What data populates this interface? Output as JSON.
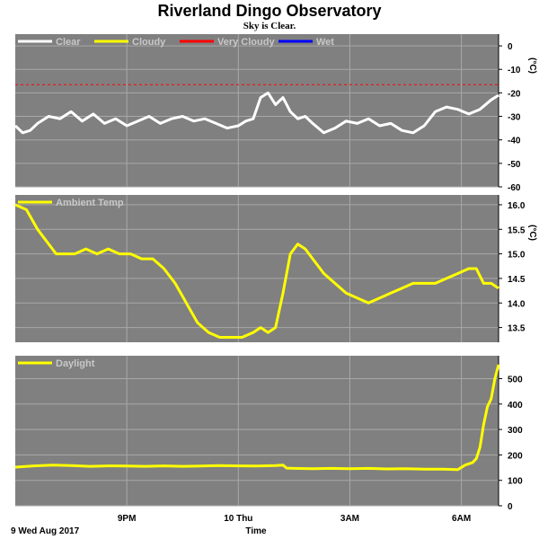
{
  "title": "Riverland Dingo Observatory",
  "subtitle": "Sky is Clear.",
  "date_label": "9 Wed Aug 2017",
  "x_axis_title": "Time",
  "x_ticks": [
    {
      "label": "9PM",
      "hour": 3.0
    },
    {
      "label": "10 Thu",
      "hour": 6.0
    },
    {
      "label": "3AM",
      "hour": 9.0
    },
    {
      "label": "6AM",
      "hour": 12.0
    }
  ],
  "colors": {
    "panel_bg": "#808080",
    "grid": "#a8a8a8",
    "clear": "#ffffff",
    "cloudy": "#ffff00",
    "very_cloudy": "#ff0000",
    "wet": "#0000ff"
  },
  "chart_data": [
    {
      "type": "line",
      "name": "sky",
      "y_unit": "(°C)",
      "ylim": [
        -60,
        5
      ],
      "yticks": [
        0,
        -10,
        -20,
        -30,
        -40,
        -50,
        -60
      ],
      "threshold": -16.5,
      "legend": [
        {
          "label": "Clear",
          "color": "#ffffff"
        },
        {
          "label": "Cloudy",
          "color": "#ffff00"
        },
        {
          "label": "Very Cloudy",
          "color": "#ff0000"
        },
        {
          "label": "Wet",
          "color": "#0000ff"
        }
      ],
      "series": [
        {
          "name": "Clear",
          "color": "#ffffff",
          "x": [
            0,
            0.2,
            0.4,
            0.6,
            0.9,
            1.2,
            1.5,
            1.8,
            2.1,
            2.4,
            2.7,
            3.0,
            3.3,
            3.6,
            3.9,
            4.2,
            4.5,
            4.8,
            5.1,
            5.4,
            5.7,
            6.0,
            6.2,
            6.4,
            6.6,
            6.8,
            7.0,
            7.2,
            7.4,
            7.6,
            7.8,
            8.0,
            8.3,
            8.6,
            8.9,
            9.2,
            9.5,
            9.8,
            10.1,
            10.4,
            10.7,
            11.0,
            11.3,
            11.6,
            11.9,
            12.2,
            12.5,
            12.8,
            13.0
          ],
          "y": [
            -34,
            -37,
            -36,
            -33,
            -30,
            -31,
            -28,
            -32,
            -29,
            -33,
            -31,
            -34,
            -32,
            -30,
            -33,
            -31,
            -30,
            -32,
            -31,
            -33,
            -35,
            -34,
            -32,
            -31,
            -22,
            -20,
            -25,
            -22,
            -28,
            -31,
            -30,
            -33,
            -37,
            -35,
            -32,
            -33,
            -31,
            -34,
            -33,
            -36,
            -37,
            -34,
            -28,
            -26,
            -27,
            -29,
            -27,
            -23,
            -21
          ]
        }
      ]
    },
    {
      "type": "line",
      "name": "ambient",
      "y_unit": "(°C)",
      "ylim": [
        13.2,
        16.2
      ],
      "yticks": [
        16.0,
        15.5,
        15.0,
        14.5,
        14.0,
        13.5
      ],
      "legend": [
        {
          "label": "Ambient Temp",
          "color": "#ffff00"
        }
      ],
      "series": [
        {
          "name": "Ambient Temp",
          "color": "#ffff00",
          "x": [
            0,
            0.3,
            0.6,
            0.9,
            1.1,
            1.3,
            1.6,
            1.9,
            2.2,
            2.5,
            2.8,
            3.1,
            3.4,
            3.7,
            4.0,
            4.3,
            4.6,
            4.9,
            5.2,
            5.5,
            5.8,
            6.1,
            6.4,
            6.6,
            6.8,
            7.0,
            7.2,
            7.4,
            7.6,
            7.8,
            8.0,
            8.3,
            8.6,
            8.9,
            9.2,
            9.5,
            9.8,
            10.1,
            10.4,
            10.7,
            11.0,
            11.3,
            11.6,
            11.9,
            12.2,
            12.4,
            12.6,
            12.8,
            13.0
          ],
          "y": [
            16.0,
            15.9,
            15.5,
            15.2,
            15.0,
            15.0,
            15.0,
            15.1,
            15.0,
            15.1,
            15.0,
            15.0,
            14.9,
            14.9,
            14.7,
            14.4,
            14.0,
            13.6,
            13.4,
            13.3,
            13.3,
            13.3,
            13.4,
            13.5,
            13.4,
            13.5,
            14.2,
            15.0,
            15.2,
            15.1,
            14.9,
            14.6,
            14.4,
            14.2,
            14.1,
            14.0,
            14.1,
            14.2,
            14.3,
            14.4,
            14.4,
            14.4,
            14.5,
            14.6,
            14.7,
            14.7,
            14.4,
            14.4,
            14.3
          ]
        }
      ]
    },
    {
      "type": "line",
      "name": "daylight",
      "ylim": [
        0,
        590
      ],
      "yticks": [
        500,
        400,
        300,
        200,
        100,
        0
      ],
      "legend": [
        {
          "label": "Daylight",
          "color": "#ffff00"
        }
      ],
      "series": [
        {
          "name": "Daylight",
          "color": "#ffff00",
          "x": [
            0,
            0.5,
            1.0,
            1.5,
            2.0,
            2.5,
            3.0,
            3.5,
            4.0,
            4.5,
            5.0,
            5.5,
            6.0,
            6.5,
            7.0,
            7.2,
            7.3,
            7.5,
            8.0,
            8.5,
            9.0,
            9.5,
            10.0,
            10.5,
            11.0,
            11.5,
            11.9,
            12.1,
            12.3,
            12.4,
            12.5,
            12.6,
            12.7,
            12.8,
            12.9,
            13.0
          ],
          "y": [
            152,
            157,
            160,
            158,
            155,
            157,
            156,
            155,
            157,
            155,
            156,
            158,
            157,
            156,
            158,
            160,
            148,
            147,
            146,
            147,
            146,
            147,
            145,
            146,
            144,
            144,
            142,
            160,
            170,
            185,
            230,
            320,
            390,
            420,
            500,
            555
          ]
        }
      ]
    }
  ]
}
